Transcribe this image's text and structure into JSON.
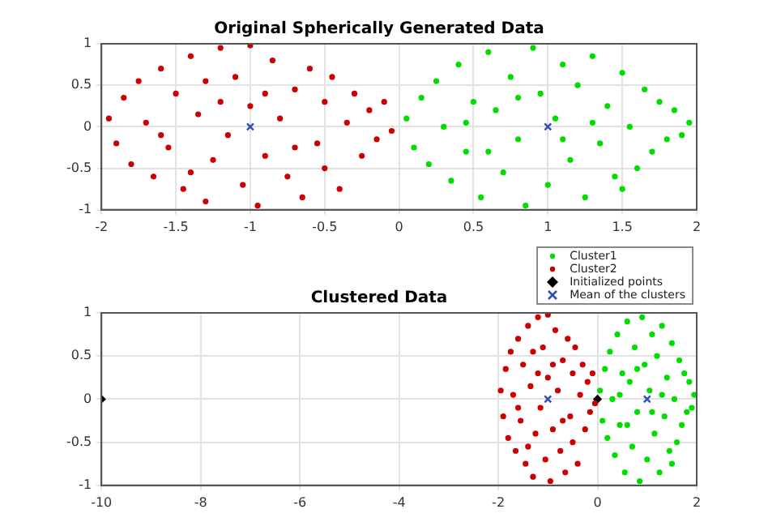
{
  "chart_data": [
    {
      "type": "scatter",
      "title": "Original Spherically Generated Data",
      "xlim": [
        -2,
        2
      ],
      "ylim": [
        -1,
        1
      ],
      "xticks": [
        -2,
        -1.5,
        -1,
        -0.5,
        0,
        0.5,
        1,
        1.5,
        2
      ],
      "yticks": [
        -1,
        -0.5,
        0,
        0.5,
        1
      ],
      "grid": true,
      "series": [
        {
          "color": "#00dd00",
          "marker": "circle",
          "x": [
            0.05,
            0.1,
            0.15,
            0.2,
            0.25,
            0.3,
            0.35,
            0.4,
            0.45,
            0.5,
            0.55,
            0.6,
            0.65,
            0.7,
            0.75,
            0.8,
            0.85,
            0.9,
            0.95,
            1.0,
            1.05,
            1.1,
            1.15,
            1.2,
            1.25,
            1.3,
            1.35,
            1.4,
            1.45,
            1.5,
            1.55,
            1.6,
            1.65,
            1.7,
            1.75,
            1.8,
            1.85,
            1.9,
            1.95,
            0.6,
            1.1,
            0.8,
            1.3,
            0.45,
            1.5
          ],
          "values": [
            0.1,
            -0.25,
            0.35,
            -0.45,
            0.55,
            0.0,
            -0.65,
            0.75,
            -0.3,
            0.3,
            -0.85,
            0.9,
            0.2,
            -0.55,
            0.6,
            -0.15,
            -0.95,
            0.95,
            0.4,
            -0.7,
            0.1,
            0.75,
            -0.4,
            0.5,
            -0.85,
            0.85,
            -0.2,
            0.25,
            -0.6,
            0.65,
            0.0,
            -0.5,
            0.45,
            -0.3,
            0.3,
            -0.15,
            0.2,
            -0.1,
            0.05,
            -0.3,
            -0.15,
            0.35,
            0.05,
            0.05,
            -0.75
          ]
        },
        {
          "color": "#cc0000",
          "marker": "circle",
          "x": [
            -1.95,
            -1.9,
            -1.85,
            -1.8,
            -1.75,
            -1.7,
            -1.65,
            -1.6,
            -1.55,
            -1.5,
            -1.45,
            -1.4,
            -1.35,
            -1.3,
            -1.3,
            -1.25,
            -1.2,
            -1.15,
            -1.1,
            -1.05,
            -1.0,
            -1.0,
            -0.95,
            -0.9,
            -0.85,
            -0.8,
            -0.75,
            -0.7,
            -0.65,
            -0.6,
            -0.55,
            -0.5,
            -0.5,
            -0.45,
            -0.4,
            -0.35,
            -0.3,
            -0.25,
            -0.2,
            -0.15,
            -0.1,
            -0.05,
            -1.6,
            -1.4,
            -0.9,
            -1.2,
            -0.7
          ],
          "values": [
            0.1,
            -0.2,
            0.35,
            -0.45,
            0.55,
            0.05,
            -0.6,
            0.7,
            -0.25,
            0.4,
            -0.75,
            0.85,
            0.15,
            -0.9,
            0.55,
            -0.4,
            0.95,
            -0.1,
            0.6,
            -0.7,
            0.98,
            0.25,
            -0.95,
            -0.35,
            0.8,
            0.1,
            -0.6,
            0.45,
            -0.85,
            0.7,
            -0.2,
            0.3,
            -0.5,
            0.6,
            -0.75,
            0.05,
            0.4,
            -0.35,
            0.2,
            -0.15,
            0.3,
            -0.05,
            -0.1,
            -0.55,
            0.4,
            0.3,
            -0.25
          ]
        },
        {
          "color": "#3050b0",
          "marker": "cross",
          "x": [
            -1,
            1
          ],
          "values": [
            0,
            0
          ]
        }
      ]
    },
    {
      "type": "scatter",
      "title": "Clustered Data",
      "xlim": [
        -10,
        2
      ],
      "ylim": [
        -1,
        1
      ],
      "xticks": [
        -10,
        -8,
        -6,
        -4,
        -2,
        0,
        2
      ],
      "yticks": [
        -1,
        -0.5,
        0,
        0.5,
        1
      ],
      "grid": true,
      "legend": "top right",
      "series": [
        {
          "name": "Cluster1",
          "color": "#00dd00",
          "marker": "circle",
          "x": [
            0.05,
            0.1,
            0.15,
            0.2,
            0.25,
            0.3,
            0.35,
            0.4,
            0.45,
            0.5,
            0.55,
            0.6,
            0.65,
            0.7,
            0.75,
            0.8,
            0.85,
            0.9,
            0.95,
            1.0,
            1.05,
            1.1,
            1.15,
            1.2,
            1.25,
            1.3,
            1.35,
            1.4,
            1.45,
            1.5,
            1.55,
            1.6,
            1.65,
            1.7,
            1.75,
            1.8,
            1.85,
            1.9,
            1.95,
            0.6,
            1.1,
            0.8,
            1.3,
            0.45,
            1.5
          ],
          "values": [
            0.1,
            -0.25,
            0.35,
            -0.45,
            0.55,
            0.0,
            -0.65,
            0.75,
            -0.3,
            0.3,
            -0.85,
            0.9,
            0.2,
            -0.55,
            0.6,
            -0.15,
            -0.95,
            0.95,
            0.4,
            -0.7,
            0.1,
            0.75,
            -0.4,
            0.5,
            -0.85,
            0.85,
            -0.2,
            0.25,
            -0.6,
            0.65,
            0.0,
            -0.5,
            0.45,
            -0.3,
            0.3,
            -0.15,
            0.2,
            -0.1,
            0.05,
            -0.3,
            -0.15,
            0.35,
            0.05,
            0.05,
            -0.75
          ]
        },
        {
          "name": "Cluster2",
          "color": "#cc0000",
          "marker": "circle",
          "x": [
            -1.95,
            -1.9,
            -1.85,
            -1.8,
            -1.75,
            -1.7,
            -1.65,
            -1.6,
            -1.55,
            -1.5,
            -1.45,
            -1.4,
            -1.35,
            -1.3,
            -1.3,
            -1.25,
            -1.2,
            -1.15,
            -1.1,
            -1.05,
            -1.0,
            -1.0,
            -0.95,
            -0.9,
            -0.85,
            -0.8,
            -0.75,
            -0.7,
            -0.65,
            -0.6,
            -0.55,
            -0.5,
            -0.5,
            -0.45,
            -0.4,
            -0.35,
            -0.3,
            -0.25,
            -0.2,
            -0.15,
            -0.1,
            -0.05,
            -1.6,
            -1.4,
            -0.9,
            -1.2,
            -0.7
          ],
          "values": [
            0.1,
            -0.2,
            0.35,
            -0.45,
            0.55,
            0.05,
            -0.6,
            0.7,
            -0.25,
            0.4,
            -0.75,
            0.85,
            0.15,
            -0.9,
            0.55,
            -0.4,
            0.95,
            -0.1,
            0.6,
            -0.7,
            0.98,
            0.25,
            -0.95,
            -0.35,
            0.8,
            0.1,
            -0.6,
            0.45,
            -0.85,
            0.7,
            -0.2,
            0.3,
            -0.5,
            0.6,
            -0.75,
            0.05,
            0.4,
            -0.35,
            0.2,
            -0.15,
            0.3,
            -0.05,
            -0.1,
            -0.55,
            0.4,
            0.3,
            -0.25
          ]
        },
        {
          "name": "Initialized points",
          "color": "#000000",
          "marker": "diamond",
          "x": [
            -10,
            0
          ],
          "values": [
            0,
            0
          ]
        },
        {
          "name": "Mean of the clusters",
          "color": "#3050b0",
          "marker": "cross",
          "x": [
            -1,
            1
          ],
          "values": [
            0,
            0
          ]
        }
      ]
    }
  ]
}
